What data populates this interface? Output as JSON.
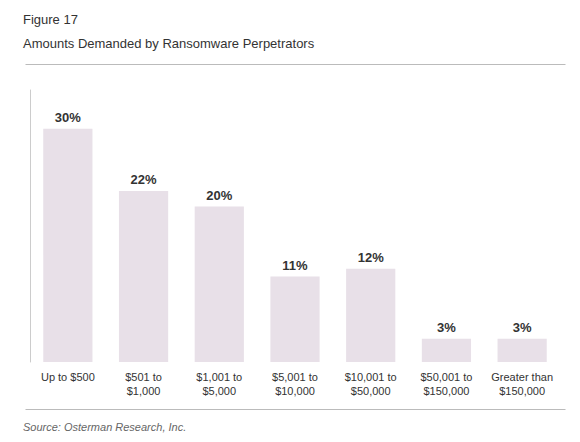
{
  "chart_data": {
    "type": "bar",
    "subtitle": "Figure 17",
    "title": "Amounts Demanded by Ransomware Perpetrators",
    "annotations": [
      "Source: Osterman Research, Inc."
    ],
    "categories": [
      "Up to $500",
      "$501 to\n$1,000",
      "$1,001 to\n$5,000",
      "$5,001 to\n$10,000",
      "$10,001 to\n$50,000",
      "$50,001 to\n$150,000",
      "Greater than\n$150,000"
    ],
    "values": [
      30,
      22,
      20,
      11,
      12,
      3,
      3
    ],
    "value_labels": [
      "30%",
      "22%",
      "20%",
      "11%",
      "12%",
      "3%",
      "3%"
    ],
    "color": "#E8E0E8",
    "ylim": [
      0,
      35
    ],
    "grid": false,
    "data_labels": true,
    "tick_labels": "x"
  }
}
